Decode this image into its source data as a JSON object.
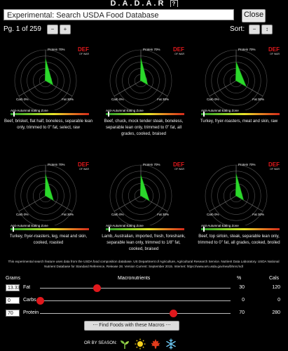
{
  "app": {
    "title": "D.A.D.A.R",
    "help": "?"
  },
  "search": {
    "value": "Experimental: Search USDA Food Database",
    "close_label": "Close"
  },
  "pager": {
    "page_text": "Pg. 1 of 259",
    "prev": "−",
    "next": "+",
    "sort_label": "Sort:",
    "sort_down": "−",
    "sort_up": "↕"
  },
  "chart_common": {
    "protein_label": "Protein 70%",
    "carbs_label": "Carb 0%",
    "fat_label": "Fat 30%",
    "zone_label": "Anti-Autumnal Eating Zone",
    "logo_text": "DEF",
    "logo_sub": "OF WAR"
  },
  "cards": [
    {
      "name": "Beef, brisket, flat half, boneless, separable lean only, trimmed to 0\" fat, select, raw",
      "protein": 0.72,
      "fat": 0.28,
      "carbs": 0.0,
      "marker": 0.04
    },
    {
      "name": "Beef, chuck, mock tender steak, boneless, separable lean only, trimmed to 0\" fat, all grades, cooked, braised",
      "protein": 0.74,
      "fat": 0.26,
      "carbs": 0.0,
      "marker": 0.03
    },
    {
      "name": "Turkey, fryer-roasters, meat and skin, raw",
      "protein": 0.62,
      "fat": 0.38,
      "carbs": 0.0,
      "marker": 0.03
    },
    {
      "name": "Turkey, fryer-roasters, leg, meat and skin, cooked, roasted",
      "protein": 0.7,
      "fat": 0.3,
      "carbs": 0.0,
      "marker": 0.03
    },
    {
      "name": "Lamb, Australian, imported, fresh, foreshank, separable lean only, trimmed to 1/8\" fat, cooked, braised",
      "protein": 0.68,
      "fat": 0.32,
      "carbs": 0.0,
      "marker": 0.04
    },
    {
      "name": "Beef, top sirloin, steak, separable lean only, trimmed to 0\" fat, all grades, cooked, broiled",
      "protein": 0.72,
      "fat": 0.28,
      "carbs": 0.0,
      "marker": 0.03
    }
  ],
  "footnote": "This experimental search feature uses data from the USDA food composition database. US Department of Agriculture, Agricultural Research Service. Nutrient Data Laboratory. USDA National Nutrient Database for Standard Reference, Release 28. Version Current: September 2015. Internet: https://www.ars.usda.gov/nea/bhnrc/ndl",
  "macros": {
    "header_grams": "Grams",
    "header_macros": "Macronutrients",
    "header_pct": "%",
    "header_cals": "Cals",
    "rows": [
      {
        "label": "Fat",
        "grams": "13.33",
        "pct": "30",
        "cals": "120",
        "level": 0.3
      },
      {
        "label": "Carbs",
        "grams": "0",
        "pct": "0",
        "cals": "0",
        "level": 0.0
      },
      {
        "label": "Protein",
        "grams": "70",
        "pct": "70",
        "cals": "280",
        "level": 0.7
      }
    ]
  },
  "find_button": "⋯ Find Foods with these Macros ⋯",
  "season": {
    "label": "OR BY SEASON:",
    "icons": [
      "sprout-icon",
      "sun-icon",
      "maple-leaf-icon",
      "snowflake-icon"
    ]
  },
  "colors": {
    "accent": "#e0181c",
    "wedge": "#2bd82b",
    "background": "#000000"
  }
}
